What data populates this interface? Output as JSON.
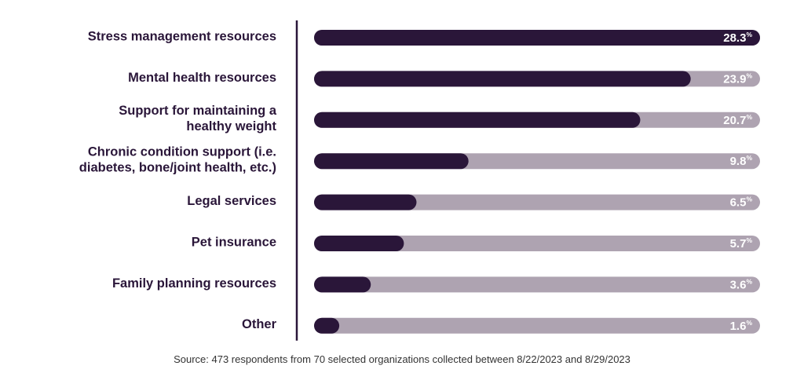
{
  "chart_data": {
    "type": "bar",
    "orientation": "horizontal",
    "categories": [
      [
        "Stress management resources"
      ],
      [
        "Mental health resources"
      ],
      [
        "Support for maintaining a",
        "healthy weight"
      ],
      [
        "Chronic condition support (i.e.",
        "diabetes, bone/joint health, etc.)"
      ],
      [
        "Legal services"
      ],
      [
        "Pet insurance"
      ],
      [
        "Family planning resources"
      ],
      [
        "Other"
      ]
    ],
    "values": [
      28.3,
      23.9,
      20.7,
      9.8,
      6.5,
      5.7,
      3.6,
      1.6
    ],
    "value_labels": [
      "28.3",
      "23.9",
      "20.7",
      "9.8",
      "6.5",
      "5.7",
      "3.6",
      "1.6"
    ],
    "unit": "%",
    "xlim": [
      0,
      28.3
    ],
    "grid": false,
    "legend": "none"
  },
  "source": "Source: 473 respondents from 70 selected organizations collected between 8/22/2023 and 8/29/2023",
  "colors": {
    "bar_fill": "#2a1639",
    "bar_track": "#aea3b1",
    "text_dark": "#2a1639",
    "value_text": "#ffffff",
    "axis_line": "#2a1639",
    "source_text": "#333333"
  }
}
